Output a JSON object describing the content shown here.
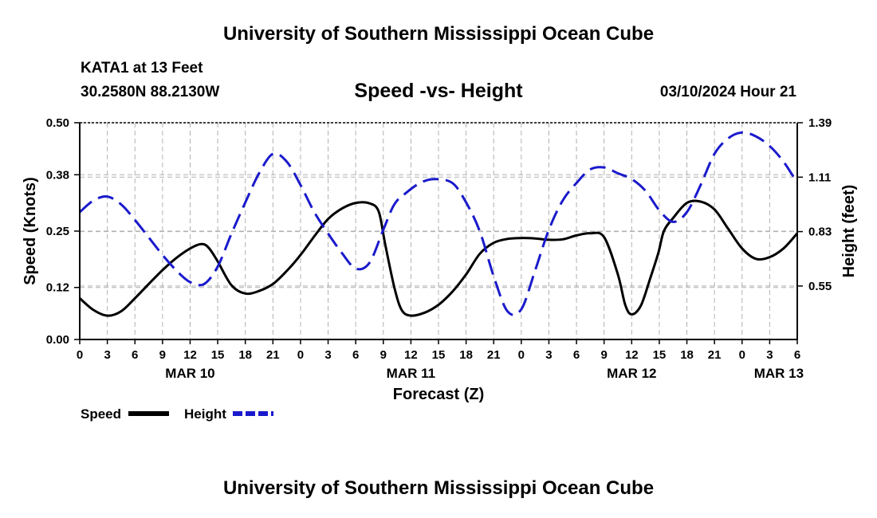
{
  "header": {
    "title": "University of Southern Mississippi Ocean Cube",
    "station": "KATA1 at 13 Feet",
    "coordinates": "30.2580N  88.2130W",
    "subtitle": "Speed -vs- Height",
    "timestamp": "03/10/2024 Hour 21"
  },
  "footer": {
    "title": "University of Southern Mississippi Ocean Cube"
  },
  "colors": {
    "speed": "#000000",
    "height": "#1a1acc",
    "grid": "#b0b0b0"
  },
  "chart_data": {
    "type": "line",
    "title": "Speed -vs- Height",
    "xlabel": "Forecast (Z)",
    "ylabel": "Speed (Knots)",
    "y2label": "Height (feet)",
    "grid": true,
    "legend": "bottom-left",
    "x_unit": "hours since MAR 10 00Z",
    "xlim": [
      0,
      78
    ],
    "ylim": [
      0.0,
      0.5
    ],
    "y2lim": [
      0.275,
      1.39
    ],
    "x_ticks": [
      0,
      3,
      6,
      9,
      12,
      15,
      18,
      21,
      24,
      27,
      30,
      33,
      36,
      39,
      42,
      45,
      48,
      51,
      54,
      57,
      60,
      63,
      66,
      69,
      72,
      75,
      78
    ],
    "x_tick_labels": [
      "0",
      "3",
      "6",
      "9",
      "12",
      "15",
      "18",
      "21",
      "0",
      "3",
      "6",
      "9",
      "12",
      "15",
      "18",
      "21",
      "0",
      "3",
      "6",
      "9",
      "12",
      "15",
      "18",
      "21",
      "0",
      "3",
      "6"
    ],
    "y_ticks": [
      0.0,
      0.12,
      0.25,
      0.38,
      0.5
    ],
    "y_tick_labels": [
      "0.00",
      "0.12",
      "0.25",
      "0.38",
      "0.50"
    ],
    "y2_ticks": [
      0.55,
      0.83,
      1.11,
      1.39
    ],
    "y2_tick_labels": [
      "0.55",
      "0.83",
      "1.11",
      "1.39"
    ],
    "date_labels": [
      {
        "x": 12,
        "label": "MAR 10"
      },
      {
        "x": 36,
        "label": "MAR 11"
      },
      {
        "x": 60,
        "label": "MAR 12"
      },
      {
        "x": 76,
        "label": "MAR 13"
      }
    ],
    "series": [
      {
        "name": "Speed",
        "axis": "left",
        "style": "solid",
        "x": [
          0,
          1.5,
          3,
          4.5,
          6,
          7.5,
          9,
          10.5,
          12,
          13.2,
          14,
          15,
          16.5,
          18,
          19.5,
          21,
          22.5,
          24,
          25.5,
          27,
          28.5,
          30,
          31.5,
          32.5,
          33.2,
          34.2,
          35,
          36,
          37.5,
          39,
          40.5,
          42,
          43.5,
          45,
          46.5,
          48,
          49.5,
          51,
          52.5,
          54,
          55.5,
          57,
          58.5,
          59.3,
          60,
          61,
          62,
          62.9,
          63.5,
          64.5,
          66,
          67.5,
          69,
          70.5,
          72,
          73.5,
          75,
          76.5,
          78
        ],
        "values": [
          0.095,
          0.068,
          0.055,
          0.065,
          0.095,
          0.128,
          0.16,
          0.188,
          0.21,
          0.22,
          0.212,
          0.18,
          0.125,
          0.106,
          0.112,
          0.128,
          0.158,
          0.195,
          0.238,
          0.278,
          0.302,
          0.315,
          0.314,
          0.295,
          0.22,
          0.12,
          0.068,
          0.055,
          0.062,
          0.08,
          0.11,
          0.15,
          0.198,
          0.223,
          0.232,
          0.234,
          0.233,
          0.23,
          0.231,
          0.24,
          0.245,
          0.236,
          0.15,
          0.08,
          0.058,
          0.078,
          0.14,
          0.2,
          0.25,
          0.28,
          0.315,
          0.318,
          0.3,
          0.255,
          0.21,
          0.186,
          0.19,
          0.21,
          0.245
        ]
      },
      {
        "name": "Height",
        "axis": "right",
        "style": "dashed",
        "x": [
          0,
          1.5,
          3,
          4.5,
          6,
          7.5,
          9,
          10.5,
          12,
          13.5,
          15,
          16.5,
          18,
          19.5,
          21,
          22.5,
          24,
          25.5,
          27,
          28.5,
          30,
          31.5,
          33,
          34.2,
          35.5,
          37,
          38.5,
          40.5,
          42,
          43.5,
          45,
          46.5,
          48,
          49.5,
          51,
          52.5,
          54,
          55.5,
          57,
          58.5,
          60,
          61.5,
          63,
          64.5,
          66,
          67.5,
          69,
          70.5,
          72,
          73.5,
          75,
          76.5,
          78
        ],
        "values": [
          0.93,
          0.99,
          1.01,
          0.97,
          0.89,
          0.8,
          0.71,
          0.63,
          0.57,
          0.56,
          0.65,
          0.82,
          0.98,
          1.13,
          1.23,
          1.19,
          1.07,
          0.93,
          0.82,
          0.72,
          0.64,
          0.67,
          0.84,
          0.97,
          1.03,
          1.08,
          1.1,
          1.08,
          0.98,
          0.83,
          0.6,
          0.42,
          0.43,
          0.63,
          0.84,
          0.99,
          1.08,
          1.15,
          1.16,
          1.13,
          1.1,
          1.04,
          0.94,
          0.88,
          0.93,
          1.07,
          1.23,
          1.31,
          1.34,
          1.32,
          1.27,
          1.19,
          1.08
        ]
      }
    ]
  }
}
